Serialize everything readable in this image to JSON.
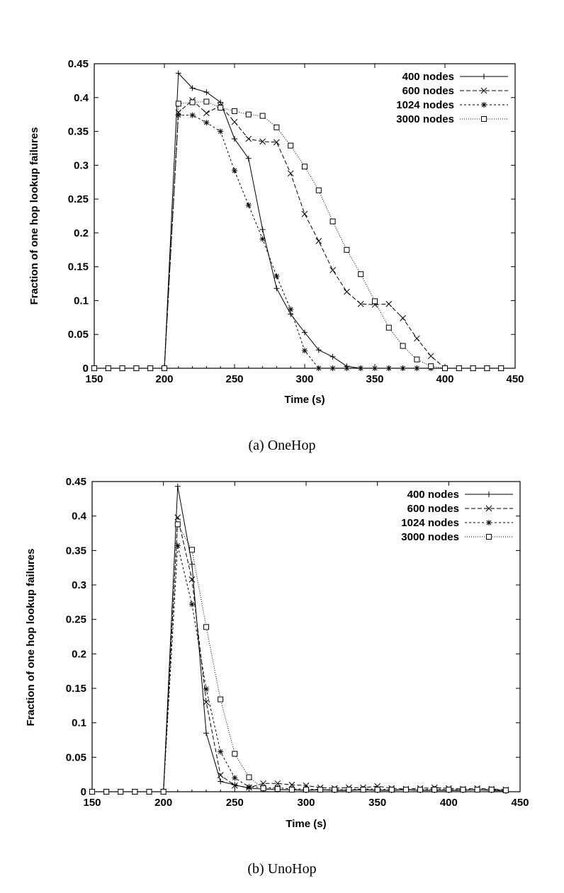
{
  "chart_data": [
    {
      "type": "line",
      "caption": "(a) OneHop",
      "xlabel": "Time (s)",
      "ylabel": "Fraction of one hop lookup failures",
      "xlim": [
        150,
        450
      ],
      "ylim": [
        0,
        0.45
      ],
      "xticks": [
        "150",
        "200",
        "250",
        "300",
        "350",
        "400",
        "450"
      ],
      "yticks": [
        "0",
        "0.05",
        "0.1",
        "0.15",
        "0.2",
        "0.25",
        "0.3",
        "0.35",
        "0.4",
        "0.45"
      ],
      "legend_position": "top-right",
      "x": [
        150,
        160,
        170,
        180,
        190,
        200,
        210,
        220,
        230,
        240,
        250,
        260,
        270,
        280,
        290,
        300,
        310,
        320,
        330,
        340,
        350,
        360,
        370,
        380,
        390,
        400,
        410,
        420,
        430,
        440
      ],
      "series": [
        {
          "name": "400 nodes",
          "marker": "plus",
          "dash": "none",
          "values": [
            0,
            0,
            0,
            0,
            0,
            0,
            0.436,
            0.414,
            0.408,
            0.393,
            0.339,
            0.31,
            0.205,
            0.118,
            0.08,
            0.053,
            0.027,
            0.017,
            0.003,
            0,
            0,
            0,
            0,
            0,
            0,
            0,
            0,
            0,
            0,
            0
          ]
        },
        {
          "name": "600 nodes",
          "marker": "x",
          "dash": "6,3",
          "values": [
            0,
            0,
            0,
            0,
            0,
            0,
            0.378,
            0.396,
            0.377,
            0.388,
            0.364,
            0.339,
            0.335,
            0.334,
            0.288,
            0.228,
            0.188,
            0.145,
            0.113,
            0.095,
            0.094,
            0.095,
            0.074,
            0.044,
            0.018,
            0,
            0,
            0,
            0,
            0
          ]
        },
        {
          "name": "1024 nodes",
          "marker": "star",
          "dash": "3,3",
          "values": [
            0,
            0,
            0,
            0,
            0,
            0,
            0.374,
            0.374,
            0.363,
            0.35,
            0.292,
            0.241,
            0.191,
            0.136,
            0.087,
            0.026,
            0,
            0,
            0,
            0,
            0,
            0,
            0,
            0,
            0,
            0,
            0,
            0,
            0,
            0
          ]
        },
        {
          "name": "3000 nodes",
          "marker": "box",
          "dash": "1,2",
          "values": [
            0,
            0,
            0,
            0,
            0,
            0,
            0.391,
            0.393,
            0.394,
            0.385,
            0.38,
            0.375,
            0.373,
            0.356,
            0.329,
            0.298,
            0.263,
            0.217,
            0.175,
            0.139,
            0.099,
            0.06,
            0.033,
            0.013,
            0.003,
            0,
            0,
            0,
            0,
            0
          ]
        }
      ]
    },
    {
      "type": "line",
      "caption": "(b) UnoHop",
      "xlabel": "Time (s)",
      "ylabel": "Fraction of one hop lookup failures",
      "xlim": [
        150,
        450
      ],
      "ylim": [
        0,
        0.45
      ],
      "xticks": [
        "150",
        "200",
        "250",
        "300",
        "350",
        "400",
        "450"
      ],
      "yticks": [
        "0",
        "0.05",
        "0.1",
        "0.15",
        "0.2",
        "0.25",
        "0.3",
        "0.35",
        "0.4",
        "0.45"
      ],
      "legend_position": "top-right",
      "x": [
        150,
        160,
        170,
        180,
        190,
        200,
        210,
        220,
        230,
        240,
        250,
        260,
        270,
        280,
        290,
        300,
        310,
        320,
        330,
        340,
        350,
        360,
        370,
        380,
        390,
        400,
        410,
        420,
        430,
        440
      ],
      "series": [
        {
          "name": "400 nodes",
          "marker": "plus",
          "dash": "none",
          "values": [
            0,
            0,
            0,
            0,
            0,
            0,
            0.443,
            0.33,
            0.085,
            0.015,
            0.01,
            0.005,
            0.004,
            0.003,
            0.003,
            0.002,
            0.003,
            0.002,
            0.002,
            0.003,
            0.002,
            0.002,
            0.003,
            0.002,
            0.002,
            0.002,
            0.002,
            0.003,
            0.002,
            0.001
          ]
        },
        {
          "name": "600 nodes",
          "marker": "x",
          "dash": "6,3",
          "values": [
            0,
            0,
            0,
            0,
            0,
            0,
            0.398,
            0.308,
            0.13,
            0.024,
            0.009,
            0.006,
            0.012,
            0.012,
            0.01,
            0.009,
            0.006,
            0.005,
            0.006,
            0.006,
            0.008,
            0.005,
            0.004,
            0.005,
            0.006,
            0.005,
            0.004,
            0.005,
            0.004,
            0.003
          ]
        },
        {
          "name": "1024 nodes",
          "marker": "star",
          "dash": "3,3",
          "values": [
            0,
            0,
            0,
            0,
            0,
            0,
            0.357,
            0.272,
            0.149,
            0.058,
            0.02,
            0.007,
            0.006,
            0.006,
            0.004,
            0.004,
            0.003,
            0.003,
            0.003,
            0.004,
            0.004,
            0.003,
            0.003,
            0.003,
            0.004,
            0.003,
            0.003,
            0.003,
            0.003,
            0.002
          ]
        },
        {
          "name": "3000 nodes",
          "marker": "box",
          "dash": "1,2",
          "values": [
            0,
            0,
            0,
            0,
            0,
            0,
            0.388,
            0.351,
            0.239,
            0.134,
            0.055,
            0.021,
            0.005,
            0.004,
            0.003,
            0.003,
            0.003,
            0.003,
            0.003,
            0.003,
            0.003,
            0.003,
            0.003,
            0.003,
            0.003,
            0.003,
            0.003,
            0.003,
            0.003,
            0.002
          ]
        }
      ]
    }
  ]
}
